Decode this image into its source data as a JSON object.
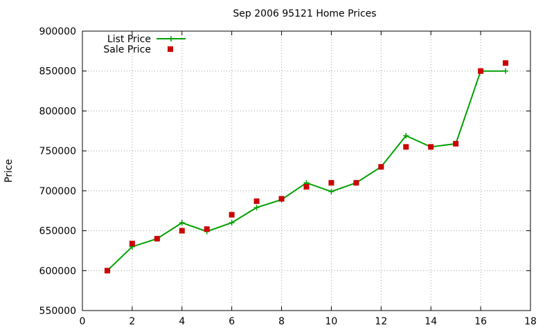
{
  "chart_data": {
    "type": "line",
    "title": "Sep 2006 95121 Home Prices",
    "xlabel": "",
    "ylabel": "Price",
    "xlim": [
      0,
      18
    ],
    "ylim": [
      550000,
      900000
    ],
    "xticks": [
      0,
      2,
      4,
      6,
      8,
      10,
      12,
      14,
      16,
      18
    ],
    "yticks": [
      550000,
      600000,
      650000,
      700000,
      750000,
      800000,
      850000,
      900000
    ],
    "grid": true,
    "legend_position": "top-left",
    "series": [
      {
        "name": "List Price",
        "style": "line-with-plus-markers",
        "color": "#00a000",
        "points": [
          [
            1,
            600000
          ],
          [
            2,
            630000
          ],
          [
            3,
            640000
          ],
          [
            4,
            660000
          ],
          [
            5,
            649000
          ],
          [
            6,
            660000
          ],
          [
            7,
            679000
          ],
          [
            8,
            689000
          ],
          [
            9,
            710000
          ],
          [
            10,
            699000
          ],
          [
            11,
            710000
          ],
          [
            12,
            730000
          ],
          [
            13,
            769000
          ],
          [
            14,
            755000
          ],
          [
            15,
            759000
          ],
          [
            16,
            850000
          ],
          [
            17,
            850000
          ]
        ]
      },
      {
        "name": "Sale Price",
        "style": "square-markers",
        "color": "#cc0000",
        "points": [
          [
            1,
            600000
          ],
          [
            2,
            634000
          ],
          [
            3,
            640000
          ],
          [
            4,
            650000
          ],
          [
            5,
            652000
          ],
          [
            6,
            670000
          ],
          [
            7,
            687000
          ],
          [
            8,
            690000
          ],
          [
            9,
            705000
          ],
          [
            10,
            710000
          ],
          [
            11,
            710000
          ],
          [
            12,
            730000
          ],
          [
            13,
            755000
          ],
          [
            14,
            755000
          ],
          [
            15,
            759000
          ],
          [
            16,
            850000
          ],
          [
            17,
            860000
          ]
        ]
      }
    ]
  }
}
